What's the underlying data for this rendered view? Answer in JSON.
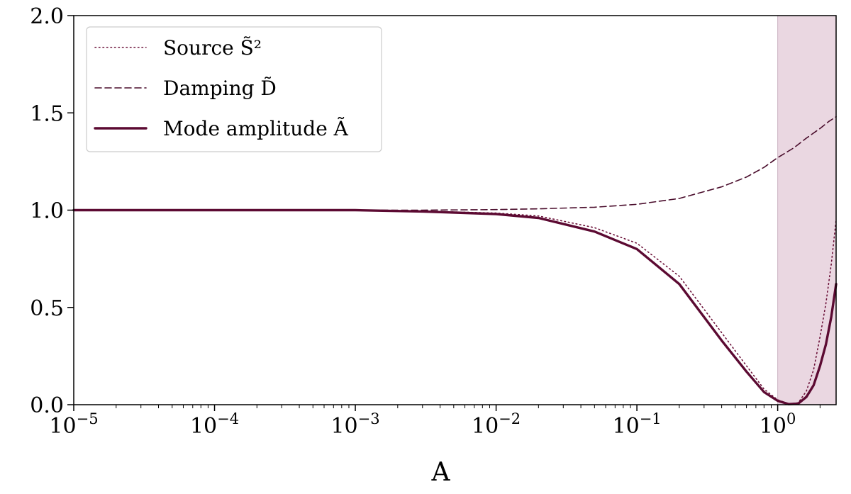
{
  "chart_data": {
    "type": "line",
    "title": "",
    "xlabel": "A",
    "ylabel": "",
    "xscale": "log",
    "xlim": [
      1e-05,
      2.6
    ],
    "ylim": [
      0,
      2.0
    ],
    "x_ticks": [
      {
        "base": "10",
        "exp": "−5",
        "value": 1e-05
      },
      {
        "base": "10",
        "exp": "−4",
        "value": 0.0001
      },
      {
        "base": "10",
        "exp": "−3",
        "value": 0.001
      },
      {
        "base": "10",
        "exp": "−2",
        "value": 0.01
      },
      {
        "base": "10",
        "exp": "−1",
        "value": 0.1
      },
      {
        "base": "10",
        "exp": "0",
        "value": 1
      }
    ],
    "y_ticks": [
      {
        "label": "0.0",
        "value": 0.0
      },
      {
        "label": "0.5",
        "value": 0.5
      },
      {
        "label": "1.0",
        "value": 1.0
      },
      {
        "label": "1.5",
        "value": 1.5
      },
      {
        "label": "2.0",
        "value": 2.0
      }
    ],
    "shaded_region": {
      "x_from": 1.0,
      "x_to": 2.6,
      "color": "#ead7e1"
    },
    "legend_position": "top-left",
    "series": [
      {
        "name": "Source S̃²",
        "style": "dotted",
        "color": "#6b1038",
        "x": [
          1e-05,
          0.0001,
          0.001,
          0.003,
          0.01,
          0.02,
          0.05,
          0.1,
          0.2,
          0.4,
          0.6,
          0.8,
          1.0,
          1.2,
          1.4,
          1.6,
          1.8,
          2.0,
          2.2,
          2.4,
          2.6
        ],
        "y": [
          1.0,
          1.0,
          1.0,
          0.995,
          0.985,
          0.97,
          0.91,
          0.83,
          0.66,
          0.37,
          0.2,
          0.08,
          0.025,
          0.004,
          0.01,
          0.07,
          0.18,
          0.35,
          0.52,
          0.72,
          0.95
        ]
      },
      {
        "name": "Damping D̃",
        "style": "dashed",
        "color": "#4a0d2c",
        "x": [
          1e-05,
          0.0001,
          0.001,
          0.003,
          0.01,
          0.02,
          0.05,
          0.1,
          0.2,
          0.4,
          0.6,
          0.8,
          1.0,
          1.3,
          1.6,
          2.0,
          2.3,
          2.6
        ],
        "y": [
          1.0,
          1.0,
          1.0,
          1.0,
          1.003,
          1.007,
          1.015,
          1.03,
          1.06,
          1.12,
          1.17,
          1.22,
          1.27,
          1.32,
          1.37,
          1.42,
          1.455,
          1.48
        ]
      },
      {
        "name": "Mode amplitude Ã",
        "style": "solid",
        "color": "#5c0a32",
        "x": [
          1e-05,
          0.0001,
          0.001,
          0.003,
          0.01,
          0.02,
          0.05,
          0.1,
          0.2,
          0.4,
          0.6,
          0.8,
          1.0,
          1.2,
          1.4,
          1.6,
          1.8,
          2.0,
          2.2,
          2.4,
          2.6
        ],
        "y": [
          1.0,
          1.0,
          1.0,
          0.993,
          0.98,
          0.96,
          0.89,
          0.8,
          0.62,
          0.33,
          0.17,
          0.065,
          0.02,
          0.003,
          0.006,
          0.04,
          0.1,
          0.2,
          0.31,
          0.45,
          0.62
        ]
      }
    ]
  }
}
